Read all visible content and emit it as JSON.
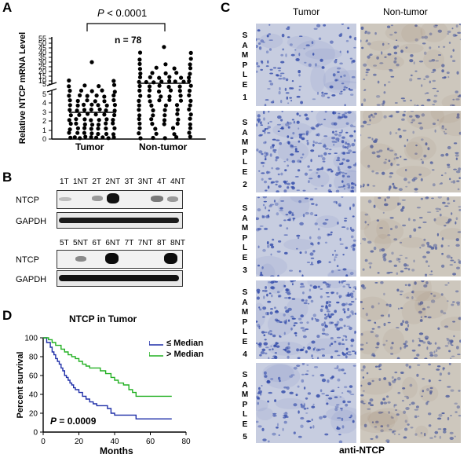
{
  "panelA": {
    "label": "A",
    "pvalue_italic": "P",
    "pvalue_rest": " < 0.0001",
    "n_label": "n = 78",
    "ylabel": "Relative NTCP mRNA Level",
    "yticks_top": [
      "55",
      "50",
      "45",
      "40",
      "35",
      "30",
      "25",
      "20",
      "15",
      "10",
      "5"
    ],
    "yticks_bottom": [
      "5",
      "4",
      "3",
      "2",
      "1",
      "0"
    ],
    "groups": [
      "Tumor",
      "Non-tumor"
    ],
    "median_tumor": 2.8,
    "median_nontumor": 5.0
  },
  "panelB": {
    "label": "B",
    "lanes1": [
      "1T",
      "1NT",
      "2T",
      "2NT",
      "3T",
      "3NT",
      "4T",
      "4NT"
    ],
    "lanes2": [
      "5T",
      "5NT",
      "6T",
      "6NT",
      "7T",
      "7NT",
      "8T",
      "8NT"
    ],
    "row_ntcp": "NTCP",
    "row_gapdh": "GAPDH"
  },
  "panelC": {
    "label": "C",
    "col_tumor": "Tumor",
    "col_nontumor": "Non-tumor",
    "samples": [
      {
        "letters": [
          "S",
          "A",
          "M",
          "P",
          "L",
          "E"
        ],
        "num": "1"
      },
      {
        "letters": [
          "S",
          "A",
          "M",
          "P",
          "L",
          "E"
        ],
        "num": "2"
      },
      {
        "letters": [
          "S",
          "A",
          "M",
          "P",
          "L",
          "E"
        ],
        "num": "3"
      },
      {
        "letters": [
          "S",
          "A",
          "M",
          "P",
          "L",
          "E"
        ],
        "num": "4"
      },
      {
        "letters": [
          "S",
          "A",
          "M",
          "P",
          "L",
          "E"
        ],
        "num": "5"
      }
    ],
    "footer": "anti-NTCP"
  },
  "chart_data": [
    {
      "type": "scatter",
      "panel": "A",
      "ylabel": "Relative NTCP mRNA Level",
      "categories": [
        "Tumor",
        "Non-tumor"
      ],
      "medians": [
        2.8,
        5.0
      ],
      "significance": "P < 0.0001",
      "n": 78
    },
    {
      "type": "line",
      "panel": "D",
      "title": "NTCP in Tumor",
      "xlabel": "Months",
      "ylabel": "Percent survival",
      "xlim": [
        0,
        80
      ],
      "ylim": [
        0,
        100
      ],
      "xticks": [
        "0",
        "20",
        "40",
        "60",
        "80"
      ],
      "yticks": [
        "0",
        "20",
        "40",
        "60",
        "80",
        "100"
      ],
      "legend": "top-right",
      "annotation_italic": "P",
      "annotation_rest": " = 0.0009",
      "series": [
        {
          "name": "≤ Median",
          "color": "#1f2fa8",
          "x": [
            0,
            2,
            4,
            5,
            6,
            7,
            8,
            9,
            10,
            11,
            12,
            13,
            14,
            15,
            16,
            17,
            18,
            20,
            22,
            24,
            26,
            28,
            30,
            32,
            34,
            36,
            38,
            40,
            45,
            50,
            52,
            60,
            65,
            70,
            72
          ],
          "y": [
            100,
            95,
            90,
            85,
            82,
            78,
            75,
            72,
            68,
            65,
            60,
            58,
            55,
            52,
            50,
            47,
            45,
            42,
            38,
            35,
            32,
            30,
            28,
            28,
            28,
            25,
            20,
            18,
            18,
            18,
            14,
            14,
            14,
            14,
            14
          ]
        },
        {
          "name": "> Median",
          "color": "#22b022",
          "x": [
            0,
            3,
            5,
            7,
            10,
            12,
            14,
            16,
            18,
            20,
            22,
            24,
            26,
            30,
            32,
            35,
            38,
            40,
            42,
            45,
            48,
            50,
            52,
            55,
            60,
            65,
            70,
            72
          ],
          "y": [
            100,
            98,
            95,
            92,
            88,
            85,
            82,
            80,
            78,
            75,
            72,
            70,
            68,
            68,
            65,
            62,
            58,
            55,
            52,
            50,
            45,
            42,
            38,
            38,
            38,
            38,
            38,
            38
          ]
        }
      ]
    }
  ]
}
